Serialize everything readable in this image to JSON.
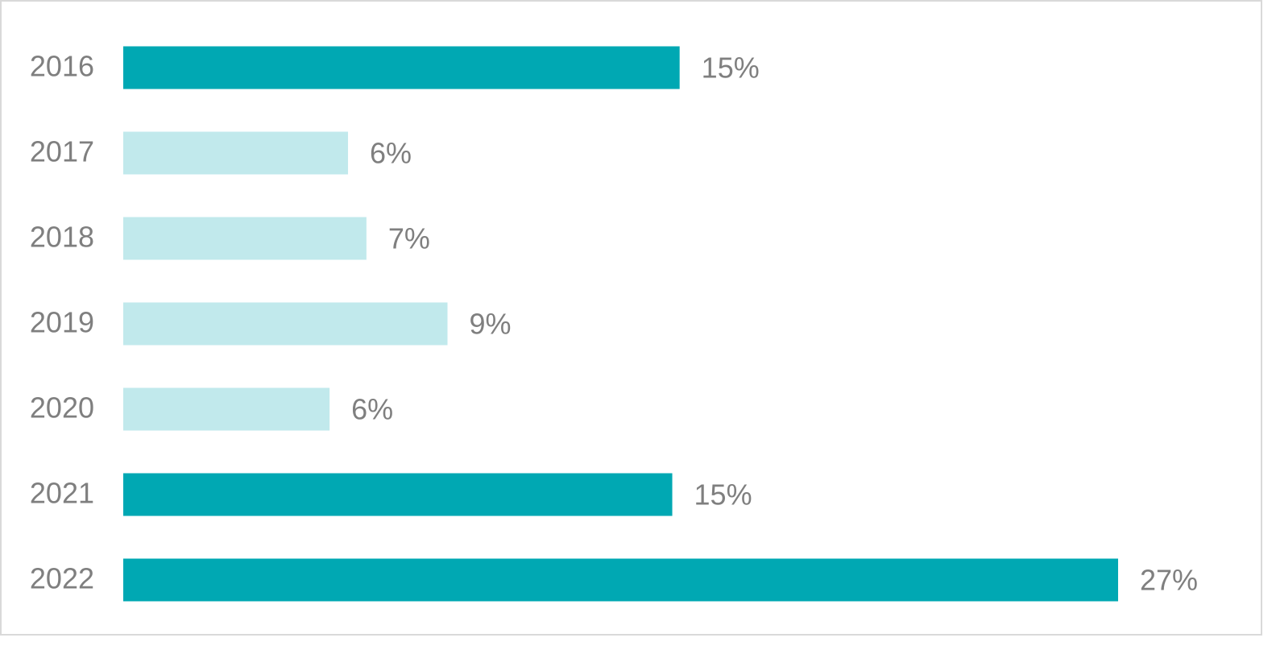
{
  "chart_data": {
    "type": "bar",
    "orientation": "horizontal",
    "categories": [
      "2016",
      "2017",
      "2018",
      "2019",
      "2020",
      "2021",
      "2022"
    ],
    "values": [
      15.1,
      6.1,
      6.6,
      8.8,
      5.6,
      14.9,
      27
    ],
    "value_labels": [
      "15%",
      "6%",
      "7%",
      "9%",
      "6%",
      "15%",
      "27%"
    ],
    "colors": [
      "#00a8b3",
      "#c1e9ec",
      "#c1e9ec",
      "#c1e9ec",
      "#c1e9ec",
      "#00a8b3",
      "#00a8b3"
    ],
    "xlim": [
      0,
      27
    ]
  }
}
